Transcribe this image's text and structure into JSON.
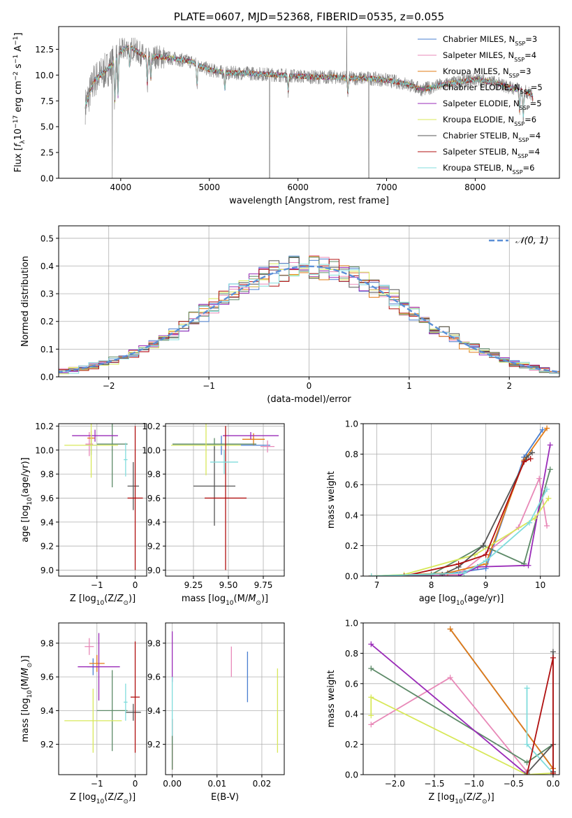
{
  "chart_data": [
    {
      "id": "spectrum",
      "type": "line",
      "title": "PLATE=0607, MJD=52368, FIBERID=0535, z=0.055",
      "xlabel": "wavelength [Angstrom, rest frame]",
      "ylabel": "Flux [f_λ10^-17 erg cm^-2 s^-1 A^-1]",
      "xlim": [
        3300,
        8950
      ],
      "ylim": [
        0,
        14.7
      ],
      "xticks": [
        4000,
        5000,
        6000,
        7000,
        8000
      ],
      "yticks": [
        0.0,
        2.5,
        5.0,
        7.5,
        10.0,
        12.5
      ],
      "grid": false,
      "legend_placement": "top-right",
      "observed_color": "#808080",
      "continuum": {
        "x": [
          3600,
          3700,
          3800,
          3900,
          4000,
          4100,
          4200,
          4300,
          4400,
          4600,
          4800,
          5000,
          5200,
          5400,
          5600,
          5800,
          6000,
          6200,
          6400,
          6600,
          6800,
          7000,
          7200,
          7400,
          7600,
          7800,
          8000,
          8200,
          8400,
          8600,
          8650
        ],
        "y": [
          7.0,
          9.5,
          10.2,
          11.0,
          12.3,
          12.8,
          12.2,
          11.6,
          11.8,
          11.6,
          11.3,
          10.5,
          10.2,
          10.2,
          10.1,
          10.0,
          9.9,
          9.8,
          9.8,
          9.7,
          9.7,
          9.5,
          9.2,
          8.6,
          9.0,
          9.3,
          9.6,
          9.3,
          8.8,
          8.3,
          8.0
        ]
      },
      "series": [
        {
          "name": "Chabrier MILES, N",
          "suffix": "=3",
          "color": "#4a7fd0"
        },
        {
          "name": "Salpeter MILES, N",
          "suffix": "=4",
          "color": "#e889b8"
        },
        {
          "name": "Kroupa MILES, N",
          "suffix": "=3",
          "color": "#e27b15"
        },
        {
          "name": "Chabrier ELODIE, N",
          "suffix": "=5",
          "color": "#5d8a68"
        },
        {
          "name": "Salpeter ELODIE, N",
          "suffix": "=5",
          "color": "#9a2bb8"
        },
        {
          "name": "Kroupa ELODIE, N",
          "suffix": "=6",
          "color": "#d8e85a"
        },
        {
          "name": "Chabrier STELIB, N",
          "suffix": "=4",
          "color": "#555555"
        },
        {
          "name": "Salpeter STELIB, N",
          "suffix": "=4",
          "color": "#b01010"
        },
        {
          "name": "Kroupa STELIB, N",
          "suffix": "=6",
          "color": "#80dcdc"
        }
      ],
      "legend_subscript": "SSP"
    },
    {
      "id": "residuals",
      "type": "bar",
      "xlabel": "(data-model)/error",
      "ylabel": "Normed distribution",
      "xlim": [
        -2.5,
        2.5
      ],
      "ylim": [
        0,
        0.545
      ],
      "xticks": [
        -2,
        -1,
        0,
        1,
        2
      ],
      "yticks": [
        0.0,
        0.1,
        0.2,
        0.3,
        0.4,
        0.5
      ],
      "grid": true,
      "legend_placement": "top-right",
      "bin_width": 0.1,
      "reference": {
        "name": "𝒩(0, 1)",
        "color": "#5b8fd6",
        "mean": 0,
        "sigma": 1
      }
    },
    {
      "id": "age-vs-Z",
      "type": "scatter",
      "xlabel": "Z [log10(Z/Z⊙)]",
      "ylabel": "age  [log10(age/yr)]",
      "xlim": [
        -2.0,
        0.3
      ],
      "ylim": [
        8.95,
        10.22
      ],
      "xticks": [
        -1,
        0
      ],
      "yticks": [
        9.0,
        9.2,
        9.4,
        9.6,
        9.8,
        10.0,
        10.2
      ],
      "grid": true,
      "points": [
        {
          "x": -1.15,
          "xerr": 0.15,
          "y": 10.04,
          "yerr": 0.08,
          "color": "#4a7fd0"
        },
        {
          "x": -1.2,
          "xerr": 0.1,
          "y": 10.05,
          "yerr": 0.1,
          "color": "#e889b8"
        },
        {
          "x": -1.15,
          "xerr": 0.1,
          "y": 10.1,
          "yerr": 0.06,
          "color": "#e27b15"
        },
        {
          "x": -0.6,
          "xerr": 0.4,
          "y": 10.05,
          "yerr": 0.36,
          "color": "#5d8a68"
        },
        {
          "x": -1.05,
          "xerr": 0.6,
          "y": 10.12,
          "yerr": 0.05,
          "color": "#9a2bb8"
        },
        {
          "x": -1.15,
          "xerr": 0.7,
          "y": 10.04,
          "yerr": 0.27,
          "color": "#d8e85a"
        },
        {
          "x": -0.05,
          "xerr": 0.15,
          "y": 9.7,
          "yerr": 0.2,
          "color": "#555555"
        },
        {
          "x": 0.0,
          "xerr": 0.2,
          "y": 9.6,
          "yerr": 0.6,
          "color": "#b01010"
        },
        {
          "x": -0.25,
          "xerr": 0.05,
          "y": 9.92,
          "yerr": 0.14,
          "color": "#80dcdc"
        }
      ]
    },
    {
      "id": "age-vs-mass",
      "type": "scatter",
      "xlabel": "mass [log10(M/M⊙)]",
      "ylabel": "",
      "xlim": [
        9.05,
        9.9
      ],
      "ylim": [
        8.95,
        10.22
      ],
      "xticks": [
        9.25,
        9.5,
        9.75
      ],
      "yticks": [
        9.0,
        9.2,
        9.4,
        9.6,
        9.8,
        10.0,
        10.2
      ],
      "grid": true,
      "points": [
        {
          "x": 9.45,
          "xerr": 0.35,
          "y": 10.04,
          "yerr": 0.08,
          "color": "#4a7fd0"
        },
        {
          "x": 9.78,
          "xerr": 0.05,
          "y": 10.03,
          "yerr": 0.05,
          "color": "#e889b8"
        },
        {
          "x": 9.68,
          "xerr": 0.08,
          "y": 10.09,
          "yerr": 0.05,
          "color": "#e27b15"
        },
        {
          "x": 9.4,
          "xerr": 0.3,
          "y": 10.05,
          "yerr": 0.05,
          "color": "#5d8a68"
        },
        {
          "x": 9.66,
          "xerr": 0.2,
          "y": 10.12,
          "yerr": 0.03,
          "color": "#9a2bb8"
        },
        {
          "x": 9.34,
          "xerr": 0.25,
          "y": 10.04,
          "yerr": 0.25,
          "color": "#d8e85a"
        },
        {
          "x": 9.4,
          "xerr": 0.15,
          "y": 9.7,
          "yerr": 0.33,
          "color": "#555555"
        },
        {
          "x": 9.48,
          "xerr": 0.15,
          "y": 9.6,
          "yerr": 0.6,
          "color": "#b01010"
        },
        {
          "x": 9.47,
          "xerr": 0.1,
          "y": 9.9,
          "yerr": 0.1,
          "color": "#80dcdc"
        }
      ]
    },
    {
      "id": "weight-vs-age",
      "type": "line",
      "xlabel": "age  [log10(age/yr)]",
      "ylabel": "mass weight",
      "xlim": [
        6.75,
        10.35
      ],
      "ylim": [
        0,
        1.0
      ],
      "xticks": [
        7,
        8,
        9,
        10
      ],
      "yticks": [
        0.0,
        0.2,
        0.4,
        0.6,
        0.8,
        1.0
      ],
      "grid": true,
      "series": [
        {
          "color": "#4a7fd0",
          "x": [
            6.9,
            8.2,
            9.0,
            9.7,
            10.04
          ],
          "y": [
            0.0,
            0.01,
            0.05,
            0.78,
            0.96
          ]
        },
        {
          "color": "#e889b8",
          "x": [
            6.9,
            8.5,
            9.6,
            9.98,
            10.12
          ],
          "y": [
            0.0,
            0.01,
            0.32,
            0.64,
            0.33
          ]
        },
        {
          "color": "#e27b15",
          "x": [
            6.9,
            8.3,
            9.0,
            9.7,
            10.12
          ],
          "y": [
            0.0,
            0.02,
            0.08,
            0.76,
            0.97
          ]
        },
        {
          "color": "#5d8a68",
          "x": [
            6.9,
            8.0,
            8.95,
            9.7,
            10.18
          ],
          "y": [
            0.0,
            0.01,
            0.2,
            0.08,
            0.7
          ]
        },
        {
          "color": "#9a2bb8",
          "x": [
            6.9,
            8.5,
            8.85,
            9.78,
            10.18
          ],
          "y": [
            0.0,
            0.0,
            0.06,
            0.07,
            0.86
          ]
        },
        {
          "color": "#d8e85a",
          "x": [
            6.9,
            7.5,
            8.8,
            9.9,
            10.15
          ],
          "y": [
            0.0,
            0.01,
            0.14,
            0.38,
            0.51
          ]
        },
        {
          "color": "#555555",
          "x": [
            8.2,
            8.5,
            8.95,
            9.75,
            9.85
          ],
          "y": [
            0.01,
            0.06,
            0.2,
            0.78,
            0.81
          ]
        },
        {
          "color": "#b01010",
          "x": [
            7.5,
            8.5,
            9.0,
            9.7,
            9.82
          ],
          "y": [
            0.0,
            0.08,
            0.14,
            0.75,
            0.77
          ]
        },
        {
          "color": "#80dcdc",
          "x": [
            6.9,
            8.6,
            9.0,
            9.8,
            10.12
          ],
          "y": [
            0.0,
            0.02,
            0.1,
            0.35,
            0.57
          ]
        }
      ]
    },
    {
      "id": "mass-vs-Z",
      "type": "scatter",
      "xlabel": "Z [log10(Z/Z⊙)]",
      "ylabel": "mass [log10(M/M⊙)]",
      "xlim": [
        -2.0,
        0.3
      ],
      "ylim": [
        9.02,
        9.92
      ],
      "xticks": [
        -1,
        0
      ],
      "yticks": [
        9.2,
        9.4,
        9.6,
        9.8
      ],
      "grid": true,
      "points": [
        {
          "x": -1.1,
          "xerr": 0.15,
          "y": 9.66,
          "yerr": 0.05,
          "color": "#4a7fd0"
        },
        {
          "x": -1.2,
          "xerr": 0.12,
          "y": 9.78,
          "yerr": 0.05,
          "color": "#e889b8"
        },
        {
          "x": -1.0,
          "xerr": 0.2,
          "y": 9.68,
          "yerr": 0.05,
          "color": "#e27b15"
        },
        {
          "x": -0.6,
          "xerr": 0.4,
          "y": 9.4,
          "yerr": 0.24,
          "color": "#5d8a68"
        },
        {
          "x": -0.95,
          "xerr": 0.55,
          "y": 9.66,
          "yerr": 0.2,
          "color": "#9a2bb8"
        },
        {
          "x": -1.1,
          "xerr": 0.75,
          "y": 9.34,
          "yerr": 0.19,
          "color": "#d8e85a"
        },
        {
          "x": -0.05,
          "xerr": 0.2,
          "y": 9.39,
          "yerr": 0.05,
          "color": "#555555"
        },
        {
          "x": 0.0,
          "xerr": 0.12,
          "y": 9.48,
          "yerr": 0.33,
          "color": "#b01010"
        },
        {
          "x": -0.25,
          "xerr": 0.05,
          "y": 9.45,
          "yerr": 0.11,
          "color": "#80dcdc"
        }
      ]
    },
    {
      "id": "mass-vs-EBV",
      "type": "scatter",
      "xlabel": "E(B-V)",
      "ylabel": "",
      "xlim": [
        -0.0015,
        0.025
      ],
      "ylim": [
        9.02,
        9.92
      ],
      "xticks": [
        0.0,
        0.01,
        0.02
      ],
      "yticks": [
        9.2,
        9.4,
        9.6,
        9.8
      ],
      "grid": true,
      "points": [
        {
          "x": 0.0168,
          "xerr": 0,
          "y": 9.6,
          "yerr": 0.15,
          "color": "#4a7fd0"
        },
        {
          "x": 0.0132,
          "xerr": 0,
          "y": 9.69,
          "yerr": 0.09,
          "color": "#e889b8"
        },
        {
          "x": 0.0,
          "xerr": 0,
          "y": 9.72,
          "yerr": 0.15,
          "color": "#9a2bb8"
        },
        {
          "x": 0.0,
          "xerr": 0,
          "y": 9.2,
          "yerr": 0.15,
          "color": "#b01010"
        },
        {
          "x": 0.0,
          "xerr": 0,
          "y": 9.4,
          "yerr": 0.2,
          "color": "#80dcdc"
        },
        {
          "x": 0.0,
          "xerr": 0,
          "y": 9.15,
          "yerr": 0.1,
          "color": "#5d8a68"
        },
        {
          "x": 0.0235,
          "xerr": 0,
          "y": 9.4,
          "yerr": 0.25,
          "color": "#d8e85a"
        }
      ]
    },
    {
      "id": "weight-vs-Z",
      "type": "line",
      "xlabel": "Z [log10(Z/Z⊙)]",
      "ylabel": "mass weight",
      "xlim": [
        -2.4,
        0.08
      ],
      "ylim": [
        0,
        1.0
      ],
      "xticks": [
        -2.0,
        -1.5,
        -1.0,
        -0.5,
        0.0
      ],
      "yticks": [
        0.0,
        0.2,
        0.4,
        0.6,
        0.8,
        1.0
      ],
      "grid": true,
      "series": [
        {
          "color": "#4a7fd0",
          "x": [
            -1.3,
            0.0
          ],
          "y": [
            0.96,
            0.04
          ]
        },
        {
          "color": "#e27b15",
          "x": [
            -1.3,
            0.0
          ],
          "y": [
            0.96,
            0.04
          ]
        },
        {
          "color": "#e889b8",
          "x": [
            -2.3,
            -1.3,
            -0.33,
            -0.33
          ],
          "y": [
            0.33,
            0.64,
            0.02,
            0.0
          ]
        },
        {
          "color": "#5d8a68",
          "x": [
            -2.3,
            -0.33,
            0.0,
            0.0
          ],
          "y": [
            0.7,
            0.08,
            0.2,
            0.01
          ]
        },
        {
          "color": "#9a2bb8",
          "x": [
            -2.3,
            -0.33,
            -0.33
          ],
          "y": [
            0.86,
            0.0,
            0.01
          ]
        },
        {
          "color": "#d8e85a",
          "x": [
            -2.3,
            -2.3,
            -0.33,
            0.0
          ],
          "y": [
            0.39,
            0.51,
            0.0,
            0.01
          ]
        },
        {
          "color": "#80dcdc",
          "x": [
            -0.33,
            -0.33,
            0.0,
            0.0
          ],
          "y": [
            0.57,
            0.2,
            0.01,
            0.02
          ]
        },
        {
          "color": "#555555",
          "x": [
            -0.33,
            0.0,
            0.0,
            0.0
          ],
          "y": [
            0.01,
            0.2,
            0.81,
            0.02
          ]
        },
        {
          "color": "#b01010",
          "x": [
            -0.33,
            0.0,
            0.0,
            0.0
          ],
          "y": [
            0.0,
            0.77,
            0.01,
            0.0
          ]
        }
      ]
    }
  ]
}
